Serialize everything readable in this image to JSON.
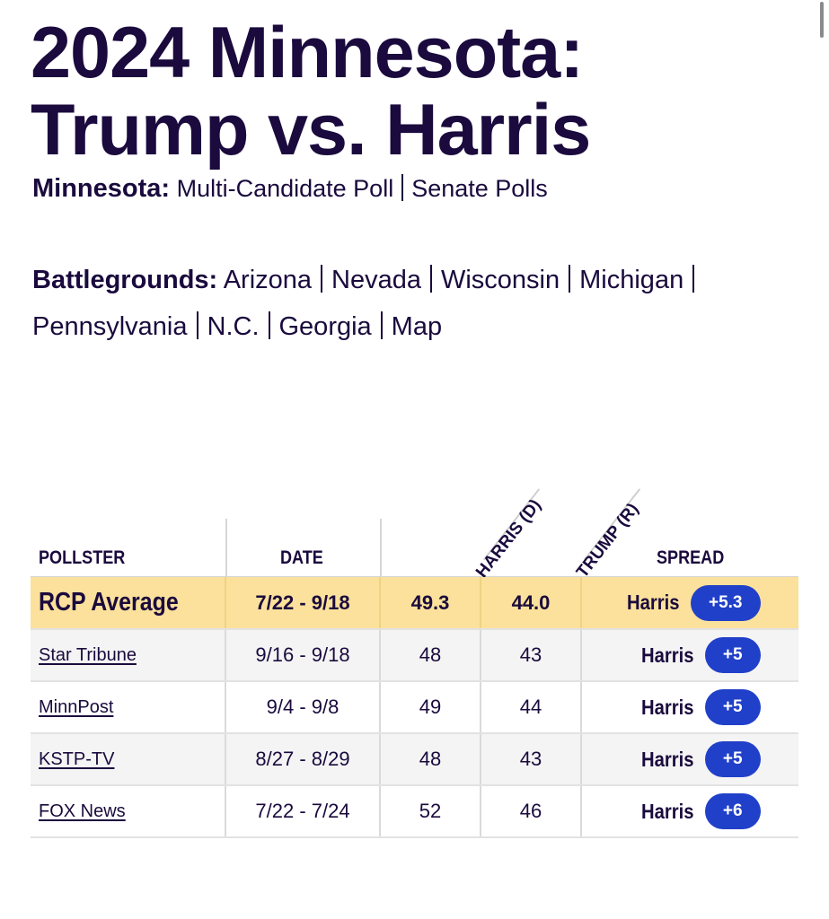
{
  "title": "2024 Minnesota: Trump vs. Harris",
  "state_links": {
    "label": "Minnesota:",
    "items": [
      "Multi-Candidate Poll",
      "Senate Polls"
    ]
  },
  "battlegrounds": {
    "label": "Battlegrounds:",
    "row1": [
      "Arizona",
      "Nevada",
      "Wisconsin",
      "Michigan"
    ],
    "row2": [
      "Pennsylvania",
      "N.C.",
      "Georgia",
      "Map"
    ]
  },
  "table": {
    "headers": {
      "pollster": "POLLSTER",
      "date": "DATE",
      "harris": "HARRIS (D)",
      "trump": "TRUMP (R)",
      "spread": "SPREAD"
    },
    "average": {
      "pollster": "RCP Average",
      "date": "7/22 - 9/18",
      "harris": "49.3",
      "trump": "44.0",
      "winner": "Harris",
      "spread": "+5.3"
    },
    "rows": [
      {
        "pollster": "Star Tribune",
        "date": "9/16 - 9/18",
        "harris": "48",
        "trump": "43",
        "winner": "Harris",
        "spread": "+5"
      },
      {
        "pollster": "MinnPost",
        "date": "9/4 - 9/8",
        "harris": "49",
        "trump": "44",
        "winner": "Harris",
        "spread": "+5"
      },
      {
        "pollster": "KSTP-TV",
        "date": "8/27 - 8/29",
        "harris": "48",
        "trump": "43",
        "winner": "Harris",
        "spread": "+5"
      },
      {
        "pollster": "FOX News",
        "date": "7/22 - 7/24",
        "harris": "52",
        "trump": "46",
        "winner": "Harris",
        "spread": "+6"
      }
    ]
  },
  "colors": {
    "text": "#1a0a3d",
    "average_row": "#fbe19b",
    "badge": "#2140c9"
  }
}
